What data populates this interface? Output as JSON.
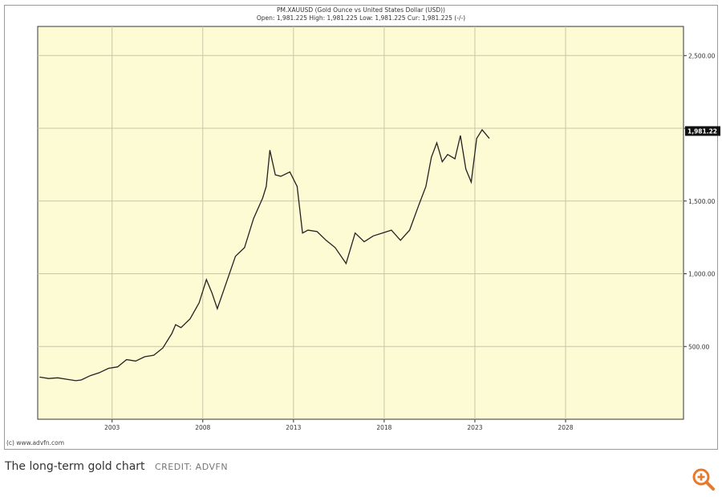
{
  "chart_data": {
    "type": "line",
    "title": "PM.XAUUSD (Gold Ounce vs United States Dollar (USD))",
    "subtitle": "Open: 1,981.225 High: 1,981.225 Low: 1,981.225 Cur: 1,981.225 (-/-)",
    "xlabel": "",
    "ylabel": "",
    "xlim": [
      1998.9,
      2034.5
    ],
    "ylim": [
      0,
      2700
    ],
    "x_ticks": [
      2003,
      2008,
      2013,
      2018,
      2023,
      2028
    ],
    "x_tick_labels": [
      "2003",
      "2008",
      "2013",
      "2018",
      "2023",
      "2028"
    ],
    "y_ticks": [
      500,
      1000,
      1500,
      2000,
      2500
    ],
    "y_tick_labels": [
      "500.00",
      "1,000.00",
      "1,500.00",
      "",
      "2,500.00"
    ],
    "current_value": 1981.225,
    "current_label": "1,981.22",
    "grid": true,
    "background": "#fdfbd3",
    "line_color": "#222222",
    "series": [
      {
        "x": [
          1999.0,
          1999.5,
          2000.0,
          2000.5,
          2001.0,
          2001.3,
          2001.8,
          2002.3,
          2002.8,
          2003.3,
          2003.8,
          2004.3,
          2004.8,
          2005.3,
          2005.8,
          2006.3,
          2006.5,
          2006.8,
          2007.3,
          2007.8,
          2008.2,
          2008.5,
          2008.8,
          2009.3,
          2009.8,
          2010.3,
          2010.8,
          2011.3,
          2011.5,
          2011.7,
          2012.0,
          2012.3,
          2012.8,
          2013.2,
          2013.5,
          2013.8,
          2014.3,
          2014.8,
          2015.3,
          2015.9,
          2016.4,
          2016.9,
          2017.4,
          2017.9,
          2018.4,
          2018.9,
          2019.4,
          2019.9,
          2020.3,
          2020.6,
          2020.9,
          2021.2,
          2021.5,
          2021.9,
          2022.2,
          2022.5,
          2022.8,
          2023.1,
          2023.4,
          2023.8
        ],
        "y": [
          290,
          280,
          285,
          275,
          265,
          270,
          300,
          320,
          350,
          360,
          410,
          400,
          430,
          440,
          490,
          590,
          650,
          630,
          690,
          800,
          960,
          870,
          760,
          940,
          1120,
          1180,
          1380,
          1520,
          1600,
          1850,
          1680,
          1670,
          1700,
          1600,
          1280,
          1300,
          1290,
          1230,
          1180,
          1070,
          1280,
          1220,
          1260,
          1280,
          1300,
          1230,
          1300,
          1470,
          1600,
          1800,
          1900,
          1770,
          1820,
          1790,
          1950,
          1720,
          1630,
          1930,
          1990,
          1930
        ]
      }
    ]
  },
  "footer": {
    "watermark": "(c) www.advfn.com"
  },
  "caption": {
    "text": "The long-term gold chart",
    "credit": "CREDIT: ADVFN"
  },
  "colors": {
    "accent": "#e8792b"
  },
  "icons": {
    "zoom": "zoom-in-icon"
  }
}
